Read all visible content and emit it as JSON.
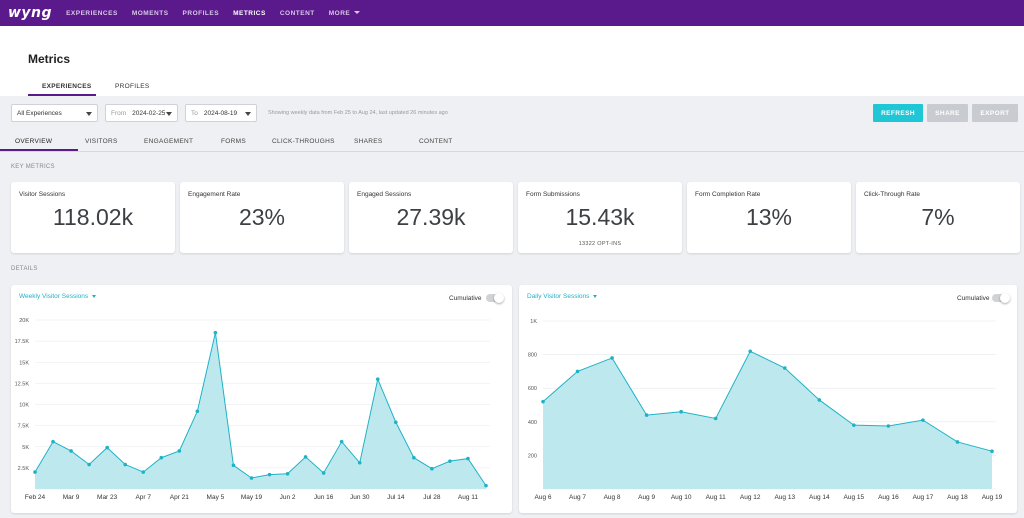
{
  "nav": {
    "logo": "wyng",
    "items": [
      "EXPERIENCES",
      "MOMENTS",
      "PROFILES",
      "METRICS",
      "CONTENT"
    ],
    "more": "MORE",
    "active": "METRICS"
  },
  "page": {
    "title": "Metrics",
    "subtabs": [
      "EXPERIENCES",
      "PROFILES"
    ]
  },
  "filters": {
    "experience": "All Experiences",
    "from_label": "From",
    "from_value": "2024-02-25",
    "to_label": "To",
    "to_value": "2024-08-19",
    "info": "Showing weekly data from Feb 25 to Aug 24, last updated 26 minutes ago",
    "refresh": "REFRESH",
    "share": "SHARE",
    "export": "EXPORT"
  },
  "section_tabs": [
    "OVERVIEW",
    "VISITORS",
    "ENGAGEMENT",
    "FORMS",
    "CLICK-THROUGHS",
    "SHARES",
    "CONTENT"
  ],
  "key_metrics_label": "KEY METRICS",
  "details_label": "DETAILS",
  "metrics": [
    {
      "title": "Visitor Sessions",
      "value": "118.02k",
      "sub": ""
    },
    {
      "title": "Engagement Rate",
      "value": "23%",
      "sub": ""
    },
    {
      "title": "Engaged Sessions",
      "value": "27.39k",
      "sub": ""
    },
    {
      "title": "Form Submissions",
      "value": "15.43k",
      "sub": "13322 OPT-INS"
    },
    {
      "title": "Form Completion Rate",
      "value": "13%",
      "sub": ""
    },
    {
      "title": "Click-Through Rate",
      "value": "7%",
      "sub": ""
    }
  ],
  "colors": {
    "nav_bg": "#5a1a8c",
    "accent": "#1fb2c6",
    "refresh_btn": "#1fc6d6",
    "disabled_btn": "#c8cbd0",
    "area_fill": "#bde9ee"
  },
  "chart_data": [
    {
      "type": "area",
      "title": "Weekly Visitor Sessions",
      "toggle_label": "Cumulative",
      "ylim": [
        0,
        20000
      ],
      "yticks": [
        "",
        "2.5K",
        "5K",
        "7.5K",
        "10K",
        "12.5K",
        "15K",
        "17.5K",
        "20K"
      ],
      "xlabels": [
        "Feb 24",
        "Mar 9",
        "Mar 23",
        "Apr 7",
        "Apr 21",
        "May 5",
        "May 19",
        "Jun 2",
        "Jun 16",
        "Jun 30",
        "Jul 14",
        "Jul 28",
        "Aug 11"
      ],
      "values": [
        2000,
        5600,
        4500,
        2900,
        4900,
        2900,
        2000,
        3700,
        4500,
        9200,
        18500,
        2800,
        1300,
        1700,
        1800,
        3800,
        1900,
        5600,
        3100,
        13000,
        7900,
        3700,
        2400,
        3300,
        3600,
        400
      ],
      "grid": true
    },
    {
      "type": "area",
      "title": "Daily Visitor Sessions",
      "toggle_label": "Cumulative",
      "ylim": [
        0,
        1000
      ],
      "yticks": [
        "",
        "200",
        "400",
        "600",
        "800",
        "1K"
      ],
      "xlabels": [
        "Aug 6",
        "Aug 7",
        "Aug 8",
        "Aug 9",
        "Aug 10",
        "Aug 11",
        "Aug 12",
        "Aug 13",
        "Aug 14",
        "Aug 15",
        "Aug 16",
        "Aug 17",
        "Aug 18",
        "Aug 19"
      ],
      "values": [
        520,
        700,
        780,
        440,
        460,
        420,
        820,
        720,
        530,
        380,
        375,
        410,
        280,
        225
      ],
      "grid": true
    }
  ]
}
